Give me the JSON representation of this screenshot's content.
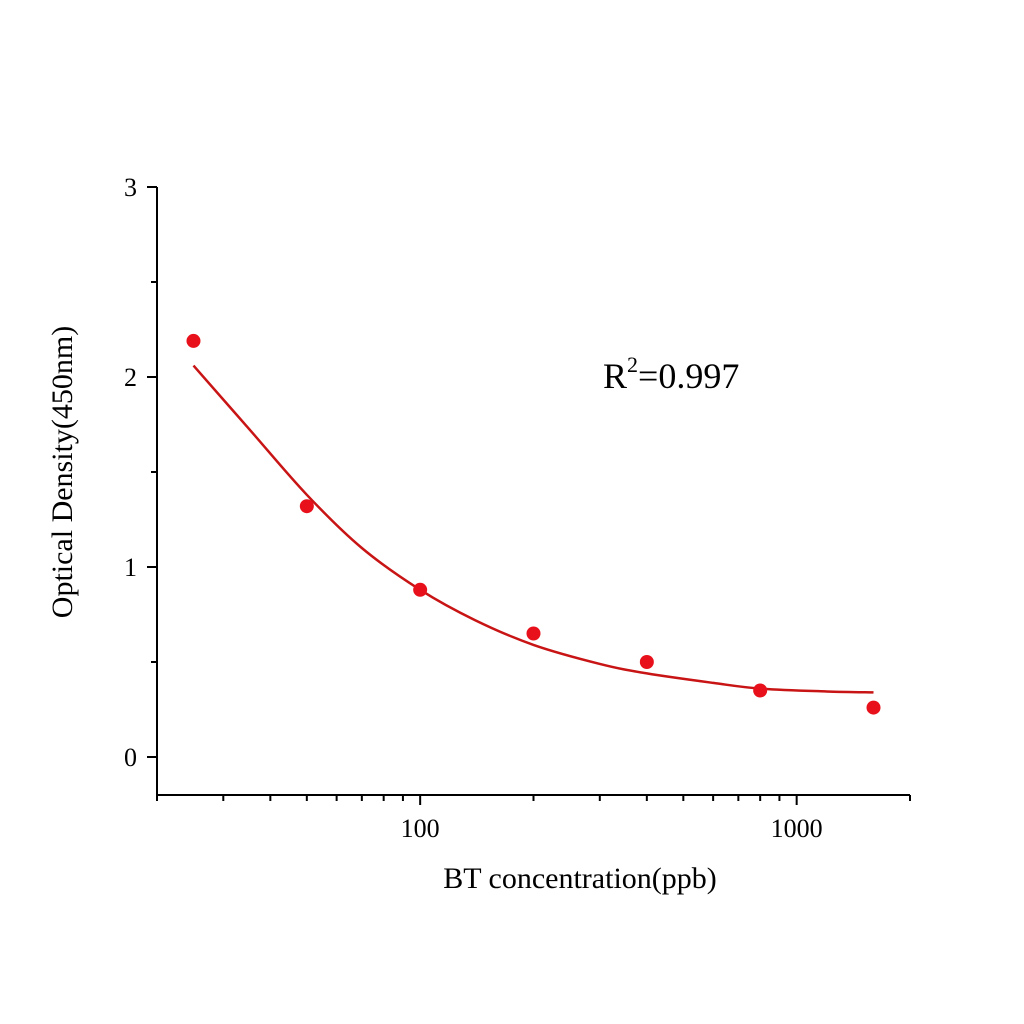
{
  "chart_data": {
    "type": "scatter",
    "title": "",
    "xlabel": "BT concentration(ppb)",
    "ylabel": "Optical Density(450nm)",
    "x_scale": "log",
    "xlim": [
      20,
      2000
    ],
    "ylim": [
      -0.2,
      3
    ],
    "x_ticks": [
      100,
      1000
    ],
    "x_tick_labels": [
      "100",
      "1000"
    ],
    "y_ticks": [
      0,
      1,
      2,
      3
    ],
    "y_tick_labels": [
      "0",
      "1",
      "2",
      "3"
    ],
    "grid": false,
    "series": [
      {
        "type": "scatter",
        "color": "#e8101a",
        "points": [
          {
            "x": 25,
            "y": 2.19
          },
          {
            "x": 50,
            "y": 1.32
          },
          {
            "x": 100,
            "y": 0.88
          },
          {
            "x": 200,
            "y": 0.65
          },
          {
            "x": 400,
            "y": 0.5
          },
          {
            "x": 800,
            "y": 0.35
          },
          {
            "x": 1600,
            "y": 0.26
          }
        ]
      },
      {
        "type": "line",
        "color": "#c81414",
        "fit": "four-parameter logistic",
        "points": [
          {
            "x": 25,
            "y": 2.06
          },
          {
            "x": 35,
            "y": 1.73
          },
          {
            "x": 50,
            "y": 1.38
          },
          {
            "x": 70,
            "y": 1.1
          },
          {
            "x": 100,
            "y": 0.88
          },
          {
            "x": 140,
            "y": 0.72
          },
          {
            "x": 200,
            "y": 0.59
          },
          {
            "x": 300,
            "y": 0.49
          },
          {
            "x": 400,
            "y": 0.44
          },
          {
            "x": 600,
            "y": 0.39
          },
          {
            "x": 800,
            "y": 0.36
          },
          {
            "x": 1200,
            "y": 0.345
          },
          {
            "x": 1600,
            "y": 0.34
          }
        ]
      }
    ],
    "annotation": {
      "base": "R",
      "superscript": "2",
      "value": "=0.997"
    }
  }
}
